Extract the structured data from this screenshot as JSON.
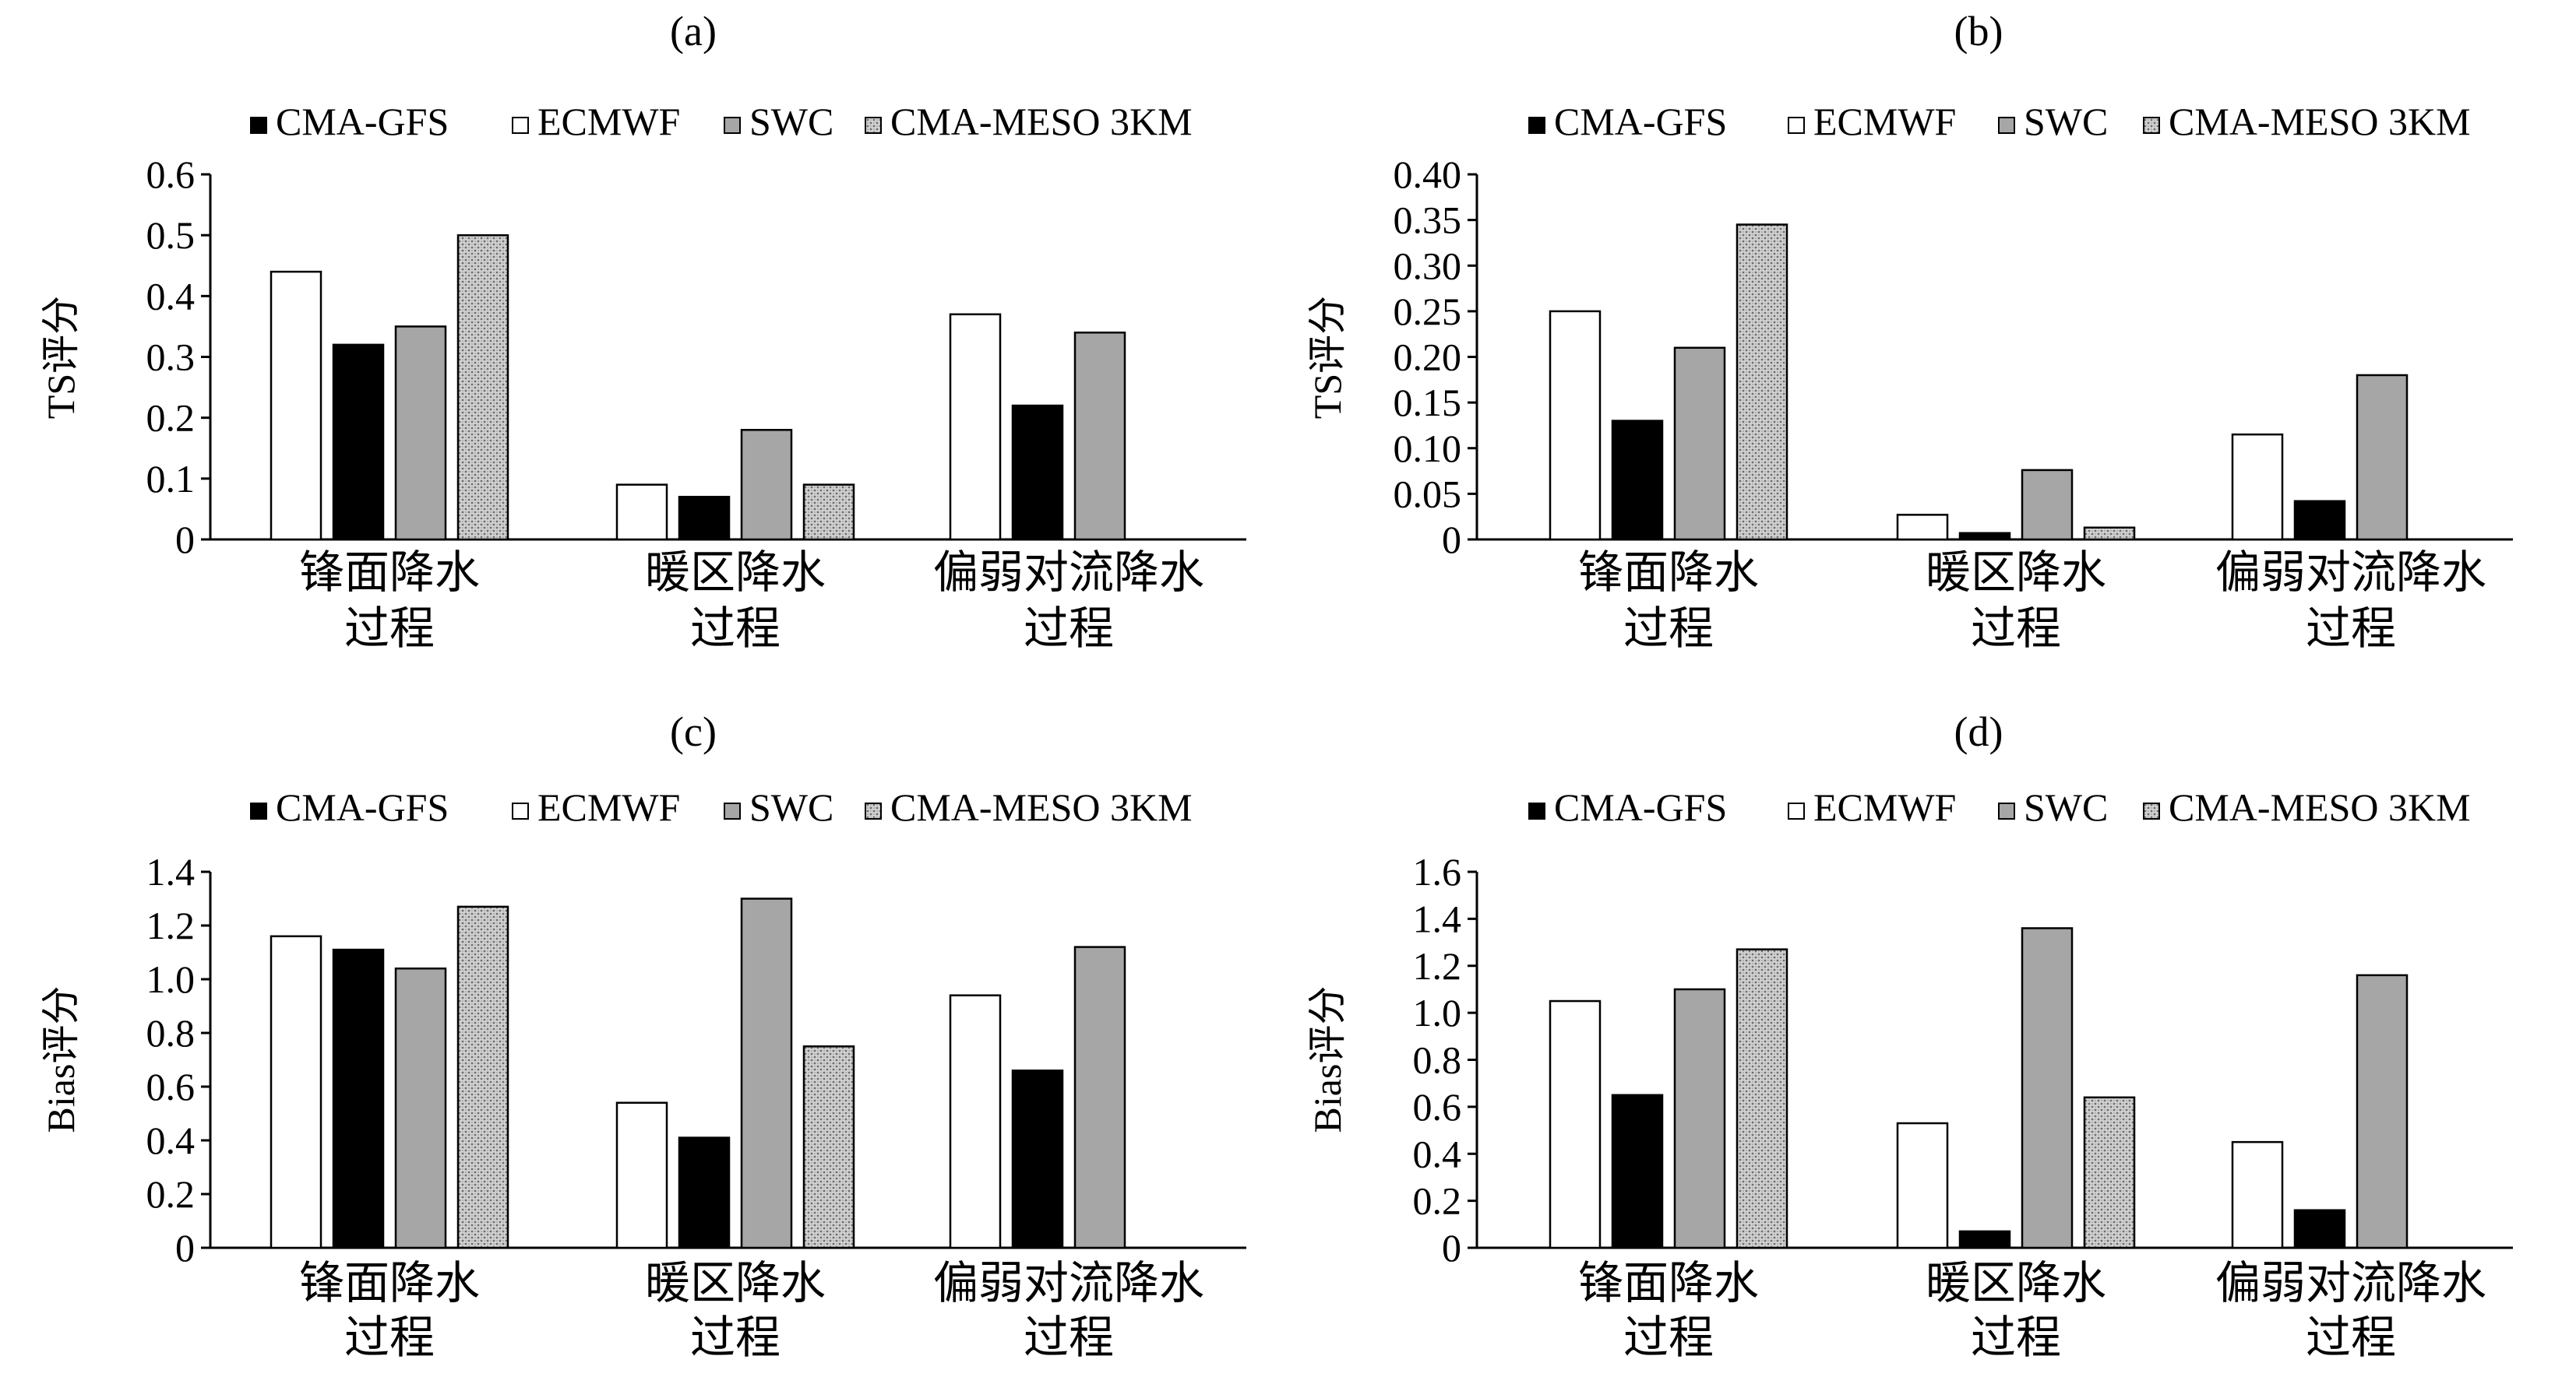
{
  "chart_data": [
    {
      "panel": "(a)",
      "type": "bar",
      "ylabel": "TS评分",
      "ylim": [
        0,
        0.6
      ],
      "yticks": [
        "0",
        "0.1",
        "0.2",
        "0.3",
        "0.4",
        "0.5",
        "0.6"
      ],
      "legend": [
        {
          "name": "CMA-GFS",
          "swatch": "#000000"
        },
        {
          "name": "ECMWF",
          "swatch": "#ffffff"
        },
        {
          "name": "SWC",
          "swatch": "#a6a6a6"
        },
        {
          "name": "CMA-MESO 3KM",
          "swatch": "pattern"
        }
      ],
      "categories": [
        [
          "锋面降水",
          "过程"
        ],
        [
          "暖区降水",
          "过程"
        ],
        [
          "偏弱对流降水",
          "过程"
        ]
      ],
      "series": [
        {
          "name": "ECMWF",
          "fill": "#ffffff",
          "values": [
            0.44,
            0.09,
            0.37
          ]
        },
        {
          "name": "CMA-GFS",
          "fill": "#000000",
          "values": [
            0.32,
            0.07,
            0.22
          ]
        },
        {
          "name": "SWC",
          "fill": "#a6a6a6",
          "values": [
            0.35,
            0.18,
            0.34
          ]
        },
        {
          "name": "CMA-MESO 3KM",
          "fill": "pattern",
          "values": [
            0.5,
            0.09,
            null
          ]
        }
      ]
    },
    {
      "panel": "(b)",
      "type": "bar",
      "ylabel": "TS评分",
      "ylim": [
        0,
        0.4
      ],
      "yticks": [
        "0",
        "0.05",
        "0.10",
        "0.15",
        "0.20",
        "0.25",
        "0.30",
        "0.35",
        "0.40"
      ],
      "legend": [
        {
          "name": "CMA-GFS",
          "swatch": "#000000"
        },
        {
          "name": "ECMWF",
          "swatch": "#ffffff"
        },
        {
          "name": "SWC",
          "swatch": "#a6a6a6"
        },
        {
          "name": "CMA-MESO 3KM",
          "swatch": "pattern"
        }
      ],
      "categories": [
        [
          "锋面降水",
          "过程"
        ],
        [
          "暖区降水",
          "过程"
        ],
        [
          "偏弱对流降水",
          "过程"
        ]
      ],
      "series": [
        {
          "name": "ECMWF",
          "fill": "#ffffff",
          "values": [
            0.25,
            0.027,
            0.115
          ]
        },
        {
          "name": "CMA-GFS",
          "fill": "#000000",
          "values": [
            0.13,
            0.007,
            0.042
          ]
        },
        {
          "name": "SWC",
          "fill": "#a6a6a6",
          "values": [
            0.21,
            0.076,
            0.18
          ]
        },
        {
          "name": "CMA-MESO 3KM",
          "fill": "pattern",
          "values": [
            0.345,
            0.013,
            null
          ]
        }
      ]
    },
    {
      "panel": "(c)",
      "type": "bar",
      "ylabel": "Bias评分",
      "ylim": [
        0,
        1.4
      ],
      "yticks": [
        "0",
        "0.2",
        "0.4",
        "0.6",
        "0.8",
        "1.0",
        "1.2",
        "1.4"
      ],
      "legend": [
        {
          "name": "CMA-GFS",
          "swatch": "#000000"
        },
        {
          "name": "ECMWF",
          "swatch": "#ffffff"
        },
        {
          "name": "SWC",
          "swatch": "#a6a6a6"
        },
        {
          "name": "CMA-MESO 3KM",
          "swatch": "pattern"
        }
      ],
      "categories": [
        [
          "锋面降水",
          "过程"
        ],
        [
          "暖区降水",
          "过程"
        ],
        [
          "偏弱对流降水",
          "过程"
        ]
      ],
      "series": [
        {
          "name": "ECMWF",
          "fill": "#ffffff",
          "values": [
            1.16,
            0.54,
            0.94
          ]
        },
        {
          "name": "CMA-GFS",
          "fill": "#000000",
          "values": [
            1.11,
            0.41,
            0.66
          ]
        },
        {
          "name": "SWC",
          "fill": "#a6a6a6",
          "values": [
            1.04,
            1.3,
            1.12
          ]
        },
        {
          "name": "CMA-MESO 3KM",
          "fill": "pattern",
          "values": [
            1.27,
            0.75,
            null
          ]
        }
      ]
    },
    {
      "panel": "(d)",
      "type": "bar",
      "ylabel": "Bias评分",
      "ylim": [
        0,
        1.6
      ],
      "yticks": [
        "0",
        "0.2",
        "0.4",
        "0.6",
        "0.8",
        "1.0",
        "1.2",
        "1.4",
        "1.6"
      ],
      "legend": [
        {
          "name": "CMA-GFS",
          "swatch": "#000000"
        },
        {
          "name": "ECMWF",
          "swatch": "#ffffff"
        },
        {
          "name": "SWC",
          "swatch": "#a6a6a6"
        },
        {
          "name": "CMA-MESO 3KM",
          "swatch": "pattern"
        }
      ],
      "categories": [
        [
          "锋面降水",
          "过程"
        ],
        [
          "暖区降水",
          "过程"
        ],
        [
          "偏弱对流降水",
          "过程"
        ]
      ],
      "series": [
        {
          "name": "ECMWF",
          "fill": "#ffffff",
          "values": [
            1.05,
            0.53,
            0.45
          ]
        },
        {
          "name": "CMA-GFS",
          "fill": "#000000",
          "values": [
            0.65,
            0.07,
            0.16
          ]
        },
        {
          "name": "SWC",
          "fill": "#a6a6a6",
          "values": [
            1.1,
            1.36,
            1.16
          ]
        },
        {
          "name": "CMA-MESO 3KM",
          "fill": "pattern",
          "values": [
            1.27,
            0.64,
            null
          ]
        }
      ]
    }
  ]
}
